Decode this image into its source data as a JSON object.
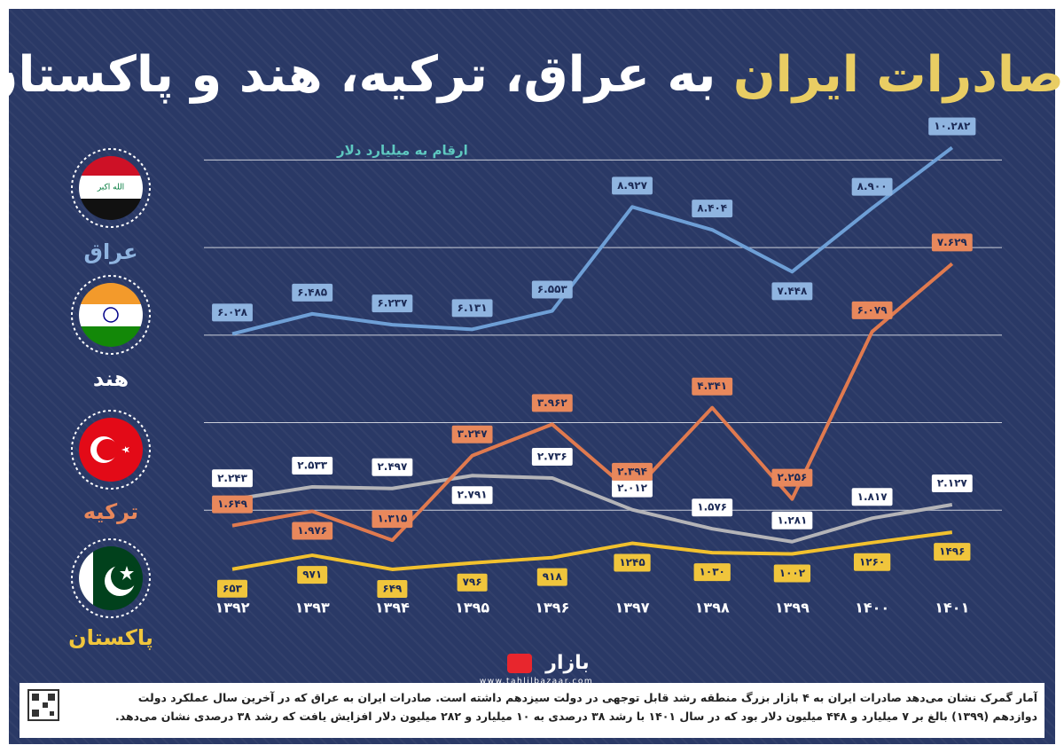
{
  "chart_data": {
    "type": "line",
    "title_highlight": "صادرات ایران",
    "title_rest": "به عراق، ترکیه، هند و پاکستان",
    "subtitle": "ارقام به میلیارد دلار",
    "categories": [
      "۱۳۹۲",
      "۱۳۹۳",
      "۱۳۹۴",
      "۱۳۹۵",
      "۱۳۹۶",
      "۱۳۹۷",
      "۱۳۹۸",
      "۱۳۹۹",
      "۱۴۰۰",
      "۱۴۰۱"
    ],
    "ylim": [
      0,
      11
    ],
    "y2lim": [
      0,
      11000
    ],
    "yticks": [
      2,
      4,
      6,
      8,
      10
    ],
    "grid": true,
    "series": [
      {
        "name": "عراق",
        "color": "#6e9fd6",
        "label_color": "#8fb4e0",
        "values": [
          6.028,
          6.485,
          6.237,
          6.131,
          6.553,
          8.927,
          8.404,
          7.448,
          8.9,
          10.282
        ],
        "value_labels": [
          "۶.۰۲۸",
          "۶.۴۸۵",
          "۶.۲۳۷",
          "۶.۱۳۱",
          "۶.۵۵۳",
          "۸.۹۲۷",
          "۸.۴۰۴",
          "۷.۴۴۸",
          "۸.۹۰۰",
          "۱۰.۲۸۲"
        ]
      },
      {
        "name": "هند",
        "color": "#b4b4b8",
        "label_color": "#ffffff",
        "values": [
          2.243,
          2.533,
          2.497,
          2.791,
          2.736,
          2.012,
          1.576,
          1.281,
          1.817,
          2.127
        ],
        "value_labels": [
          "۲.۲۴۳",
          "۲.۵۳۳",
          "۲.۴۹۷",
          "۲.۷۹۱",
          "۲.۷۳۶",
          "۲.۰۱۲",
          "۱.۵۷۶",
          "۱.۲۸۱",
          "۱.۸۱۷",
          "۲.۱۲۷"
        ]
      },
      {
        "name": "ترکیه",
        "color": "#e07a4f",
        "label_color": "#e8885c",
        "values": [
          1.649,
          1.976,
          1.315,
          3.247,
          3.962,
          2.394,
          4.341,
          2.256,
          6.079,
          7.629
        ],
        "value_labels": [
          "۱.۶۴۹",
          "۱.۹۷۶",
          "۱.۳۱۵",
          "۳.۲۴۷",
          "۳.۹۶۲",
          "۲.۳۹۴",
          "۴.۳۴۱",
          "۲.۲۵۶",
          "۶.۰۷۹",
          "۷.۶۲۹"
        ]
      },
      {
        "name": "پاکستان",
        "color": "#f2c12e",
        "label_color": "#f0c53c",
        "axis": "y2",
        "values": [
          653,
          971,
          649,
          796,
          918,
          1245,
          1030,
          1002,
          1260,
          1496
        ],
        "value_labels": [
          "۶۵۳",
          "۹۷۱",
          "۶۴۹",
          "۷۹۶",
          "۹۱۸",
          "۱۲۴۵",
          "۱۰۳۰",
          "۱۰۰۲",
          "۱۲۶۰",
          "۱۴۹۶"
        ]
      }
    ]
  },
  "flag_text": "الله اكبر",
  "logo": {
    "name": "بازار",
    "url": "www.tahlilbazaar.com"
  },
  "footer": "آمار گمرک نشان می‌دهد صادرات ایران به ۴ بازار بزرگ منطقه رشد قابل توجهی در دولت سیزدهم داشته است. صادرات ایران به عراق که در آخرین سال عملکرد دولت دوازدهم (۱۳۹۹) بالغ بر ۷ میلیارد و ۴۴۸ میلیون دلار بود که در سال ۱۴۰۱ با رشد ۳۸ درصدی به ۱۰ میلیارد و ۲۸۲ میلیون دلار افزایش یافت که رشد ۳۸ درصدی نشان می‌دهد."
}
